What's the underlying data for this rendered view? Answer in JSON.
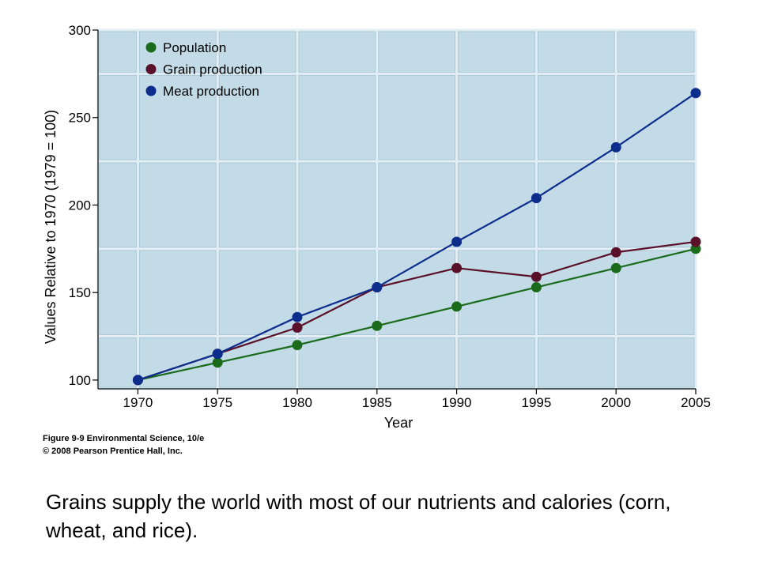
{
  "chart_data": {
    "type": "line",
    "x": [
      1970,
      1975,
      1980,
      1985,
      1990,
      1995,
      2000,
      2005
    ],
    "x_ticks": [
      "1970",
      "1975",
      "1980",
      "1985",
      "1990",
      "1995",
      "2000",
      "2005"
    ],
    "y_ticks": [
      "100",
      "150",
      "200",
      "250",
      "300"
    ],
    "xlim": [
      1967.5,
      2005
    ],
    "ylim": [
      95,
      300
    ],
    "xlabel": "Year",
    "ylabel": "Values Relative to 1970 (1979 = 100)",
    "grid": true,
    "legend_position": "top-left",
    "series": [
      {
        "name": "Population",
        "color": "#1a6b1a",
        "values": [
          100,
          110,
          120,
          131,
          142,
          153,
          164,
          175
        ]
      },
      {
        "name": "Grain production",
        "color": "#5a1028",
        "values": [
          100,
          115,
          130,
          153,
          164,
          159,
          173,
          179
        ]
      },
      {
        "name": "Meat production",
        "color": "#0d2d8c",
        "values": [
          100,
          115,
          136,
          153,
          179,
          204,
          233,
          264
        ]
      }
    ]
  },
  "figure_credit": {
    "line1": "Figure 9-9  Environmental Science, 10/e",
    "line2": "© 2008 Pearson Prentice Hall, Inc."
  },
  "caption": "Grains supply the world with most of our nutrients and calories (corn, wheat, and rice).",
  "colors": {
    "plot_background": "#c3dbe7",
    "grid_line": "#e2eef4",
    "tile_shade": "#a9c7d7"
  }
}
